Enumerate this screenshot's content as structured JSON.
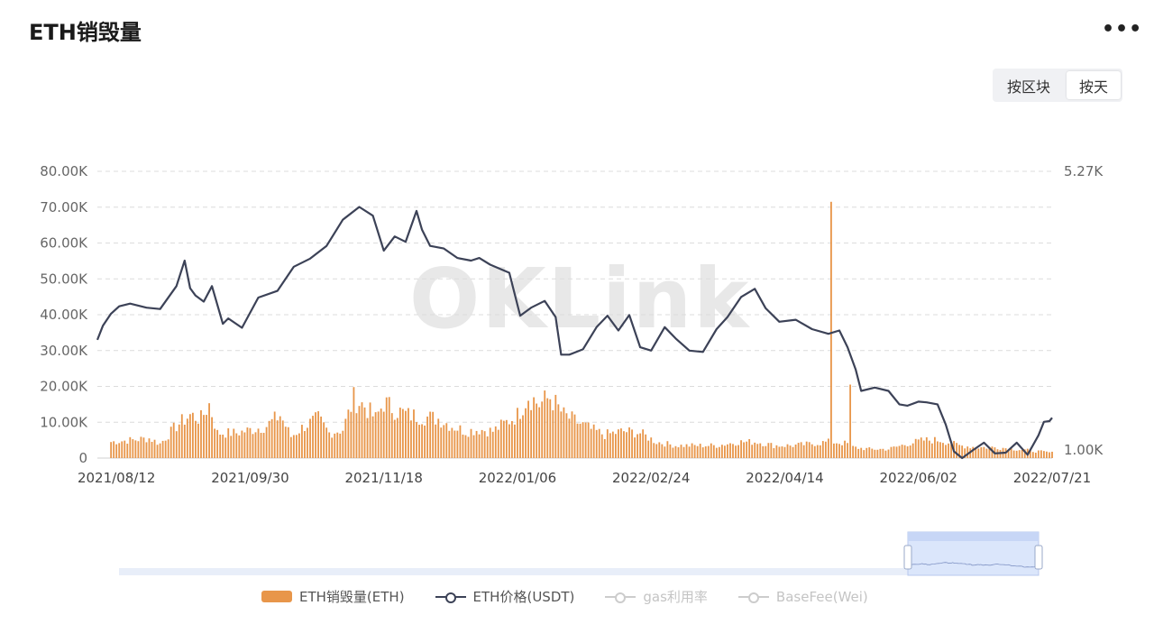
{
  "header": {
    "title": "ETH销毁量",
    "more_icon": "more-dots-icon",
    "more_label": "•••"
  },
  "view_toggle": {
    "by_block": "按区块",
    "by_day": "按天",
    "active": "按天"
  },
  "watermark": "OKLink",
  "legend": [
    {
      "label": "ETH销毁量(ETH)",
      "color": "#e8964a",
      "kind": "bar",
      "enabled": true
    },
    {
      "label": "ETH价格(USDT)",
      "color": "#3c4257",
      "kind": "line",
      "enabled": true
    },
    {
      "label": "gas利用率",
      "color": "#c8c8c8",
      "kind": "line",
      "enabled": false
    },
    {
      "label": "BaseFee(Wei)",
      "color": "#c8c8c8",
      "kind": "line",
      "enabled": false
    }
  ],
  "chart_data": {
    "type": "bar",
    "x_ticks": [
      "2021/08/12",
      "2021/09/30",
      "2021/11/18",
      "2022/01/06",
      "2022/02/24",
      "2022/04/14",
      "2022/06/02",
      "2022/07/21"
    ],
    "x_range": [
      "2021/08/05",
      "2022/07/21"
    ],
    "y_left": {
      "ticks": [
        "0",
        "10.00K",
        "20.00K",
        "30.00K",
        "40.00K",
        "50.00K",
        "60.00K",
        "70.00K",
        "80.00K"
      ],
      "min": 0,
      "max": 80000
    },
    "y_right": {
      "ticks": [
        "1.00K",
        "5.27K"
      ],
      "min": 1000,
      "max": 5270
    },
    "grid": true,
    "legend_position": "bottom",
    "series": [
      {
        "name": "ETH销毁量(ETH)",
        "axis": "left",
        "type": "bar",
        "color": "#e8964a",
        "points": [
          [
            "2021/08/05",
            0
          ],
          [
            "2021/08/10",
            4500
          ],
          [
            "2021/08/17",
            5000
          ],
          [
            "2021/08/24",
            5500
          ],
          [
            "2021/08/28",
            4000
          ],
          [
            "2021/09/03",
            9000
          ],
          [
            "2021/09/08",
            12000
          ],
          [
            "2021/09/12",
            11000
          ],
          [
            "2021/09/15",
            15000
          ],
          [
            "2021/09/18",
            7000
          ],
          [
            "2021/09/25",
            7000
          ],
          [
            "2021/10/01",
            8000
          ],
          [
            "2021/10/06",
            9000
          ],
          [
            "2021/10/11",
            12000
          ],
          [
            "2021/10/15",
            6000
          ],
          [
            "2021/10/20",
            9000
          ],
          [
            "2021/10/25",
            11000
          ],
          [
            "2021/10/29",
            7000
          ],
          [
            "2021/11/03",
            8000
          ],
          [
            "2021/11/07",
            16500
          ],
          [
            "2021/11/11",
            14500
          ],
          [
            "2021/11/15",
            11000
          ],
          [
            "2021/11/18",
            15500
          ],
          [
            "2021/11/22",
            13500
          ],
          [
            "2021/11/27",
            12000
          ],
          [
            "2021/12/03",
            11500
          ],
          [
            "2021/12/08",
            11000
          ],
          [
            "2021/12/13",
            9000
          ],
          [
            "2021/12/18",
            7500
          ],
          [
            "2021/12/23",
            8000
          ],
          [
            "2021/12/28",
            7500
          ],
          [
            "2022/01/02",
            10000
          ],
          [
            "2022/01/06",
            12000
          ],
          [
            "2022/01/10",
            17500
          ],
          [
            "2022/01/14",
            15000
          ],
          [
            "2022/01/18",
            17000
          ],
          [
            "2022/01/23",
            12000
          ],
          [
            "2022/01/28",
            10000
          ],
          [
            "2022/02/02",
            8000
          ],
          [
            "2022/02/07",
            6500
          ],
          [
            "2022/02/14",
            7500
          ],
          [
            "2022/02/20",
            7000
          ],
          [
            "2022/02/26",
            4500
          ],
          [
            "2022/03/05",
            3500
          ],
          [
            "2022/03/12",
            3500
          ],
          [
            "2022/03/20",
            3500
          ],
          [
            "2022/03/28",
            4500
          ],
          [
            "2022/04/04",
            4500
          ],
          [
            "2022/04/10",
            3500
          ],
          [
            "2022/04/17",
            3500
          ],
          [
            "2022/04/24",
            4000
          ],
          [
            "2022/04/30",
            4500
          ],
          [
            "2022/05/01",
            71500
          ],
          [
            "2022/05/02",
            4500
          ],
          [
            "2022/05/07",
            4000
          ],
          [
            "2022/05/08",
            20500
          ],
          [
            "2022/05/09",
            3000
          ],
          [
            "2022/05/15",
            2500
          ],
          [
            "2022/05/22",
            2500
          ],
          [
            "2022/05/29",
            4000
          ],
          [
            "2022/06/04",
            5000
          ],
          [
            "2022/06/10",
            5000
          ],
          [
            "2022/06/17",
            3500
          ],
          [
            "2022/06/24",
            3000
          ],
          [
            "2022/07/01",
            3000
          ],
          [
            "2022/07/08",
            2500
          ],
          [
            "2022/07/14",
            2000
          ],
          [
            "2022/07/21",
            1500
          ]
        ]
      },
      {
        "name": "ETH价格(USDT)",
        "axis": "right",
        "type": "line",
        "color": "#3c4257",
        "points": [
          [
            "2021/08/05",
            2760
          ],
          [
            "2021/08/07",
            2970
          ],
          [
            "2021/08/10",
            3150
          ],
          [
            "2021/08/13",
            3260
          ],
          [
            "2021/08/17",
            3300
          ],
          [
            "2021/08/23",
            3240
          ],
          [
            "2021/08/28",
            3220
          ],
          [
            "2021/09/03",
            3560
          ],
          [
            "2021/09/06",
            3940
          ],
          [
            "2021/09/08",
            3530
          ],
          [
            "2021/09/10",
            3420
          ],
          [
            "2021/09/13",
            3330
          ],
          [
            "2021/09/16",
            3560
          ],
          [
            "2021/09/20",
            3000
          ],
          [
            "2021/09/22",
            3080
          ],
          [
            "2021/09/27",
            2940
          ],
          [
            "2021/10/03",
            3390
          ],
          [
            "2021/10/10",
            3490
          ],
          [
            "2021/10/16",
            3850
          ],
          [
            "2021/10/22",
            3970
          ],
          [
            "2021/10/28",
            4160
          ],
          [
            "2021/11/03",
            4550
          ],
          [
            "2021/11/09",
            4740
          ],
          [
            "2021/11/14",
            4610
          ],
          [
            "2021/11/18",
            4090
          ],
          [
            "2021/11/22",
            4300
          ],
          [
            "2021/11/26",
            4220
          ],
          [
            "2021/11/30",
            4680
          ],
          [
            "2021/12/02",
            4400
          ],
          [
            "2021/12/05",
            4160
          ],
          [
            "2021/12/10",
            4120
          ],
          [
            "2021/12/15",
            3980
          ],
          [
            "2021/12/20",
            3940
          ],
          [
            "2021/12/23",
            3980
          ],
          [
            "2021/12/27",
            3880
          ],
          [
            "2022/01/03",
            3760
          ],
          [
            "2022/01/07",
            3120
          ],
          [
            "2022/01/11",
            3240
          ],
          [
            "2022/01/16",
            3340
          ],
          [
            "2022/01/20",
            3100
          ],
          [
            "2022/01/22",
            2540
          ],
          [
            "2022/01/25",
            2540
          ],
          [
            "2022/01/30",
            2620
          ],
          [
            "2022/02/04",
            2950
          ],
          [
            "2022/02/08",
            3120
          ],
          [
            "2022/02/12",
            2900
          ],
          [
            "2022/02/16",
            3130
          ],
          [
            "2022/02/20",
            2650
          ],
          [
            "2022/02/24",
            2600
          ],
          [
            "2022/03/01",
            2950
          ],
          [
            "2022/03/05",
            2780
          ],
          [
            "2022/03/10",
            2600
          ],
          [
            "2022/03/15",
            2580
          ],
          [
            "2022/03/20",
            2920
          ],
          [
            "2022/03/24",
            3100
          ],
          [
            "2022/03/29",
            3400
          ],
          [
            "2022/04/03",
            3520
          ],
          [
            "2022/04/07",
            3230
          ],
          [
            "2022/04/12",
            3030
          ],
          [
            "2022/04/18",
            3060
          ],
          [
            "2022/04/24",
            2920
          ],
          [
            "2022/04/30",
            2850
          ],
          [
            "2022/05/04",
            2900
          ],
          [
            "2022/05/07",
            2650
          ],
          [
            "2022/05/10",
            2320
          ],
          [
            "2022/05/12",
            2000
          ],
          [
            "2022/05/17",
            2050
          ],
          [
            "2022/05/22",
            2000
          ],
          [
            "2022/05/26",
            1800
          ],
          [
            "2022/05/29",
            1780
          ],
          [
            "2022/06/02",
            1840
          ],
          [
            "2022/06/05",
            1830
          ],
          [
            "2022/06/09",
            1800
          ],
          [
            "2022/06/12",
            1500
          ],
          [
            "2022/06/15",
            1100
          ],
          [
            "2022/06/18",
            1000
          ],
          [
            "2022/06/22",
            1120
          ],
          [
            "2022/06/26",
            1230
          ],
          [
            "2022/06/30",
            1070
          ],
          [
            "2022/07/04",
            1080
          ],
          [
            "2022/07/08",
            1230
          ],
          [
            "2022/07/12",
            1050
          ],
          [
            "2022/07/16",
            1340
          ],
          [
            "2022/07/18",
            1540
          ],
          [
            "2022/07/20",
            1550
          ],
          [
            "2022/07/21",
            1600
          ]
        ]
      }
    ]
  }
}
